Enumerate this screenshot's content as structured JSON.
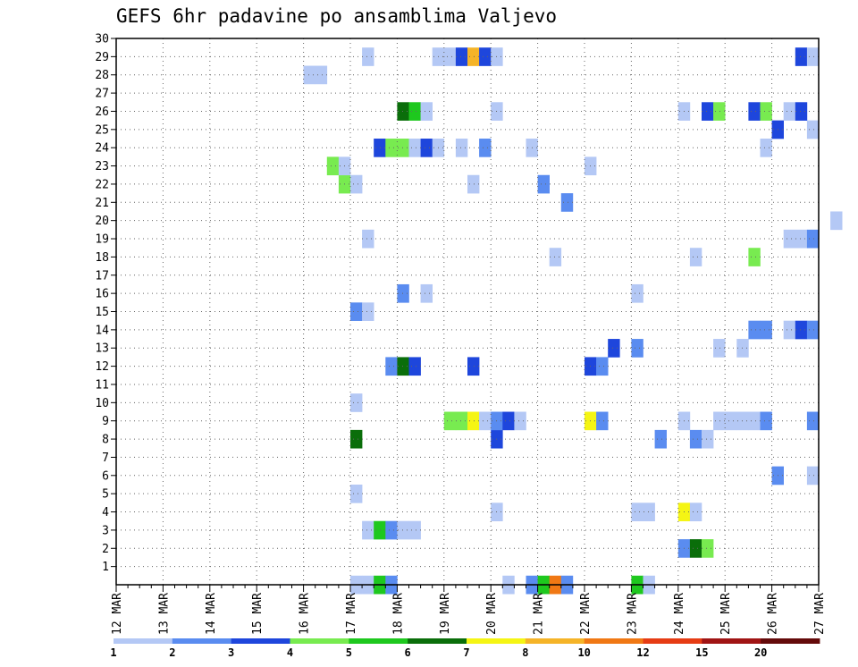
{
  "chart_data": {
    "type": "heatmap",
    "title": "GEFS 6hr padavine po ansamblima Valjevo",
    "y_ticks": [
      "1",
      "2",
      "3",
      "4",
      "5",
      "6",
      "7",
      "8",
      "9",
      "10",
      "11",
      "12",
      "13",
      "14",
      "15",
      "16",
      "17",
      "18",
      "19",
      "20",
      "21",
      "22",
      "23",
      "24",
      "25",
      "26",
      "27",
      "28",
      "29",
      "30"
    ],
    "x_ticks": [
      "12 MAR",
      "13 MAR",
      "14 MAR",
      "15 MAR",
      "16 MAR",
      "17 MAR",
      "18 MAR",
      "19 MAR",
      "20 MAR",
      "21 MAR",
      "22 MAR",
      "23 MAR",
      "24 MAR",
      "25 MAR",
      "26 MAR",
      "27 MAR"
    ],
    "x_range_days": [
      12,
      27
    ],
    "y_range": [
      0,
      30
    ],
    "grid": true,
    "colorbar": {
      "boundaries": [
        "1",
        "2",
        "3",
        "4",
        "5",
        "6",
        "7",
        "8",
        "10",
        "12",
        "15",
        "20"
      ],
      "colors": [
        "#b4c8f5",
        "#5a8cf0",
        "#1e46dc",
        "#78eb50",
        "#1ec81e",
        "#0a6e0a",
        "#f5f514",
        "#f5b428",
        "#f07814",
        "#e63c14",
        "#a01414",
        "#640a0a"
      ]
    },
    "cells": [
      {
        "m": 0,
        "t": 17.25,
        "l": 0
      },
      {
        "m": 0,
        "t": 17.0,
        "l": 0
      },
      {
        "m": 0,
        "t": 17.5,
        "l": 4
      },
      {
        "m": 0,
        "t": 17.75,
        "l": 1
      },
      {
        "m": 0,
        "t": 20.25,
        "l": 0
      },
      {
        "m": 0,
        "t": 20.75,
        "l": 1
      },
      {
        "m": 0,
        "t": 21.0,
        "l": 4
      },
      {
        "m": 0,
        "t": 21.25,
        "l": 8
      },
      {
        "m": 0,
        "t": 21.5,
        "l": 1
      },
      {
        "m": 0,
        "t": 23.0,
        "l": 4
      },
      {
        "m": 0,
        "t": 23.25,
        "l": 0
      },
      {
        "m": 2,
        "t": 24.0,
        "l": 1
      },
      {
        "m": 2,
        "t": 24.25,
        "l": 5
      },
      {
        "m": 2,
        "t": 24.5,
        "l": 3
      },
      {
        "m": 3,
        "t": 17.25,
        "l": 0
      },
      {
        "m": 3,
        "t": 17.5,
        "l": 4
      },
      {
        "m": 3,
        "t": 17.75,
        "l": 1
      },
      {
        "m": 3,
        "t": 18.0,
        "l": 0
      },
      {
        "m": 3,
        "t": 18.25,
        "l": 0
      },
      {
        "m": 4,
        "t": 20.0,
        "l": 0
      },
      {
        "m": 4,
        "t": 23.0,
        "l": 0
      },
      {
        "m": 4,
        "t": 23.25,
        "l": 0
      },
      {
        "m": 4,
        "t": 24.0,
        "l": 6
      },
      {
        "m": 4,
        "t": 24.25,
        "l": 0
      },
      {
        "m": 5,
        "t": 17.0,
        "l": 0
      },
      {
        "m": 6,
        "t": 26.0,
        "l": 1
      },
      {
        "m": 6,
        "t": 26.75,
        "l": 0
      },
      {
        "m": 8,
        "t": 17.0,
        "l": 5
      },
      {
        "m": 8,
        "t": 20.0,
        "l": 2
      },
      {
        "m": 8,
        "t": 23.5,
        "l": 1
      },
      {
        "m": 8,
        "t": 24.25,
        "l": 1
      },
      {
        "m": 8,
        "t": 24.5,
        "l": 0
      },
      {
        "m": 9,
        "t": 19.0,
        "l": 3
      },
      {
        "m": 9,
        "t": 19.25,
        "l": 3
      },
      {
        "m": 9,
        "t": 19.5,
        "l": 6
      },
      {
        "m": 9,
        "t": 19.75,
        "l": 0
      },
      {
        "m": 9,
        "t": 20.0,
        "l": 1
      },
      {
        "m": 9,
        "t": 20.25,
        "l": 2
      },
      {
        "m": 9,
        "t": 20.5,
        "l": 0
      },
      {
        "m": 9,
        "t": 22.0,
        "l": 6
      },
      {
        "m": 9,
        "t": 22.25,
        "l": 1
      },
      {
        "m": 9,
        "t": 24.0,
        "l": 0
      },
      {
        "m": 9,
        "t": 24.75,
        "l": 0
      },
      {
        "m": 9,
        "t": 25.0,
        "l": 0
      },
      {
        "m": 9,
        "t": 25.25,
        "l": 0
      },
      {
        "m": 9,
        "t": 25.5,
        "l": 0
      },
      {
        "m": 9,
        "t": 25.75,
        "l": 1
      },
      {
        "m": 9,
        "t": 26.75,
        "l": 1
      },
      {
        "m": 10,
        "t": 17.0,
        "l": 0
      },
      {
        "m": 12,
        "t": 17.75,
        "l": 1
      },
      {
        "m": 12,
        "t": 18.0,
        "l": 5
      },
      {
        "m": 12,
        "t": 18.25,
        "l": 2
      },
      {
        "m": 12,
        "t": 19.5,
        "l": 2
      },
      {
        "m": 12,
        "t": 22.0,
        "l": 2
      },
      {
        "m": 12,
        "t": 22.25,
        "l": 1
      },
      {
        "m": 13,
        "t": 22.5,
        "l": 2
      },
      {
        "m": 13,
        "t": 23.0,
        "l": 1
      },
      {
        "m": 13,
        "t": 24.75,
        "l": 0
      },
      {
        "m": 13,
        "t": 25.25,
        "l": 0
      },
      {
        "m": 14,
        "t": 25.5,
        "l": 1
      },
      {
        "m": 14,
        "t": 25.75,
        "l": 1
      },
      {
        "m": 14,
        "t": 26.25,
        "l": 0
      },
      {
        "m": 14,
        "t": 26.5,
        "l": 2
      },
      {
        "m": 14,
        "t": 26.75,
        "l": 1
      },
      {
        "m": 15,
        "t": 17.0,
        "l": 1
      },
      {
        "m": 15,
        "t": 17.25,
        "l": 0
      },
      {
        "m": 16,
        "t": 18.0,
        "l": 1
      },
      {
        "m": 16,
        "t": 18.5,
        "l": 0
      },
      {
        "m": 16,
        "t": 23.0,
        "l": 0
      },
      {
        "m": 18,
        "t": 21.25,
        "l": 0
      },
      {
        "m": 18,
        "t": 24.25,
        "l": 0
      },
      {
        "m": 18,
        "t": 25.5,
        "l": 3
      },
      {
        "m": 19,
        "t": 17.25,
        "l": 0
      },
      {
        "m": 19,
        "t": 26.25,
        "l": 0
      },
      {
        "m": 19,
        "t": 26.5,
        "l": 0
      },
      {
        "m": 19,
        "t": 26.75,
        "l": 1
      },
      {
        "m": 20,
        "t": 27.25,
        "l": 0
      },
      {
        "m": 21,
        "t": 21.5,
        "l": 1
      },
      {
        "m": 22,
        "t": 16.75,
        "l": 3
      },
      {
        "m": 22,
        "t": 17.0,
        "l": 0
      },
      {
        "m": 22,
        "t": 19.5,
        "l": 0
      },
      {
        "m": 22,
        "t": 21.0,
        "l": 1
      },
      {
        "m": 23,
        "t": 16.5,
        "l": 3
      },
      {
        "m": 23,
        "t": 16.75,
        "l": 0
      },
      {
        "m": 23,
        "t": 22.0,
        "l": 0
      },
      {
        "m": 24,
        "t": 17.5,
        "l": 2
      },
      {
        "m": 24,
        "t": 17.75,
        "l": 3
      },
      {
        "m": 24,
        "t": 18.0,
        "l": 3
      },
      {
        "m": 24,
        "t": 18.25,
        "l": 0
      },
      {
        "m": 24,
        "t": 18.5,
        "l": 2
      },
      {
        "m": 24,
        "t": 18.75,
        "l": 0
      },
      {
        "m": 24,
        "t": 19.25,
        "l": 0
      },
      {
        "m": 24,
        "t": 19.75,
        "l": 1
      },
      {
        "m": 24,
        "t": 20.75,
        "l": 0
      },
      {
        "m": 24,
        "t": 25.75,
        "l": 0
      },
      {
        "m": 25,
        "t": 26.0,
        "l": 2
      },
      {
        "m": 25,
        "t": 26.75,
        "l": 0
      },
      {
        "m": 26,
        "t": 18.0,
        "l": 5
      },
      {
        "m": 26,
        "t": 18.25,
        "l": 4
      },
      {
        "m": 26,
        "t": 18.5,
        "l": 0
      },
      {
        "m": 26,
        "t": 20.0,
        "l": 0
      },
      {
        "m": 26,
        "t": 24.0,
        "l": 0
      },
      {
        "m": 26,
        "t": 24.5,
        "l": 2
      },
      {
        "m": 26,
        "t": 24.75,
        "l": 3
      },
      {
        "m": 26,
        "t": 25.5,
        "l": 2
      },
      {
        "m": 26,
        "t": 25.75,
        "l": 3
      },
      {
        "m": 26,
        "t": 26.25,
        "l": 0
      },
      {
        "m": 26,
        "t": 26.5,
        "l": 2
      },
      {
        "m": 28,
        "t": 16.0,
        "l": 0
      },
      {
        "m": 28,
        "t": 16.25,
        "l": 0
      },
      {
        "m": 29,
        "t": 17.25,
        "l": 0
      },
      {
        "m": 29,
        "t": 18.75,
        "l": 0
      },
      {
        "m": 29,
        "t": 19.0,
        "l": 0
      },
      {
        "m": 29,
        "t": 19.25,
        "l": 2
      },
      {
        "m": 29,
        "t": 19.5,
        "l": 7
      },
      {
        "m": 29,
        "t": 19.75,
        "l": 2
      },
      {
        "m": 29,
        "t": 20.0,
        "l": 0
      },
      {
        "m": 29,
        "t": 26.5,
        "l": 2
      },
      {
        "m": 29,
        "t": 26.75,
        "l": 0
      }
    ]
  }
}
